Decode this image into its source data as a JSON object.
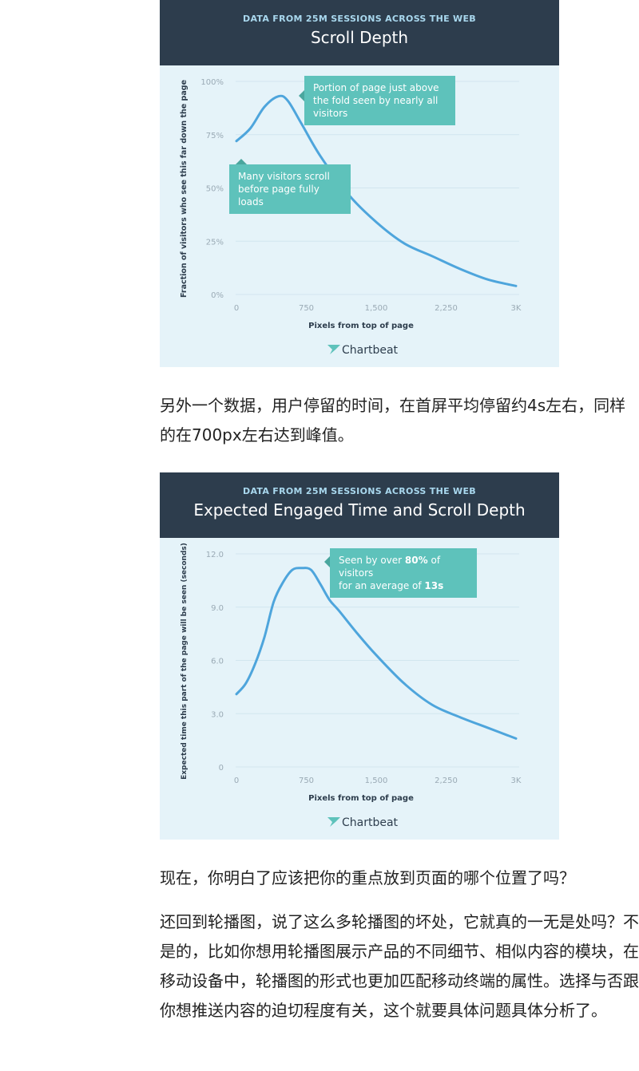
{
  "chart_data": [
    {
      "type": "line",
      "supertitle": "DATA FROM 25M SESSIONS ACROSS THE WEB",
      "title": "Scroll Depth",
      "xlabel": "Pixels from top of page",
      "ylabel": "Fraction of visitors who see this far down the page",
      "xlim": [
        0,
        3000
      ],
      "ylim": [
        0,
        100
      ],
      "xticks": [
        0,
        750,
        1500,
        2250,
        3000
      ],
      "xtick_labels": [
        "0",
        "750",
        "1,500",
        "2,250",
        "3K"
      ],
      "yticks": [
        0,
        25,
        50,
        75,
        100
      ],
      "ytick_labels": [
        "0%",
        "25%",
        "50%",
        "75%",
        "100%"
      ],
      "grid": true,
      "line_color": "#4ea5dc",
      "x": [
        0,
        150,
        300,
        450,
        550,
        700,
        900,
        1200,
        1500,
        1800,
        2100,
        2400,
        2700,
        3000
      ],
      "y": [
        72,
        78,
        88,
        93,
        91,
        80,
        65,
        47,
        34,
        24,
        18,
        12,
        7,
        4
      ],
      "annotations": [
        {
          "text": "Portion of page just above the fold seen by nearly all visitors",
          "x": 300,
          "y": 93
        },
        {
          "text": "Many visitors scroll before page fully loads",
          "x": 20,
          "y": 60
        }
      ],
      "logo": "Chartbeat"
    },
    {
      "type": "line",
      "supertitle": "DATA FROM 25M SESSIONS ACROSS THE WEB",
      "title": "Expected Engaged Time and Scroll Depth",
      "xlabel": "Pixels from top of page",
      "ylabel": "Expected time this part of the page will be seen (seconds)",
      "xlim": [
        0,
        3000
      ],
      "ylim": [
        0,
        12
      ],
      "xticks": [
        0,
        750,
        1500,
        2250,
        3000
      ],
      "xtick_labels": [
        "0",
        "750",
        "1,500",
        "2,250",
        "3K"
      ],
      "yticks": [
        0,
        3,
        6,
        9,
        12
      ],
      "ytick_labels": [
        "0",
        "3.0",
        "6.0",
        "9.0",
        "12.0"
      ],
      "grid": true,
      "line_color": "#4ea5dc",
      "x": [
        0,
        100,
        200,
        300,
        400,
        500,
        600,
        700,
        800,
        900,
        1000,
        1100,
        1300,
        1500,
        1800,
        2100,
        2400,
        2700,
        3000
      ],
      "y": [
        4.1,
        4.7,
        5.8,
        7.3,
        9.3,
        10.4,
        11.1,
        11.2,
        11.1,
        10.3,
        9.4,
        8.8,
        7.5,
        6.3,
        4.7,
        3.5,
        2.8,
        2.2,
        1.6
      ],
      "annotations": [
        {
          "text_parts": [
            "Seen by over ",
            "80%",
            " of visitors",
            "for an average of ",
            "13s"
          ],
          "x": 850,
          "y": 11.2
        }
      ],
      "logo": "Chartbeat"
    }
  ],
  "article": {
    "p1": "另外一个数据，用户停留的时间，在首屏平均停留约4s左右，同样的在700px左右达到峰值。",
    "p2": "现在，你明白了应该把你的重点放到页面的哪个位置了吗？",
    "p3": "还回到轮播图，说了这么多轮播图的坏处，它就真的一无是处吗？不是的，比如你想用轮播图展示产品的不同细节、相似内容的模块，在移动设备中，轮播图的形式也更加匹配移动终端的属性。选择与否跟你想推送内容的迫切程度有关，这个就要具体问题具体分析了。"
  }
}
